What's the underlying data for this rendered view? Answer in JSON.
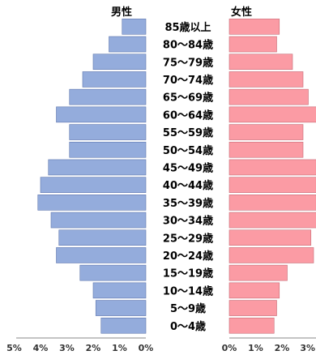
{
  "chart_data": {
    "type": "bar",
    "orientation": "horizontal",
    "layout": "population-pyramid",
    "categories": [
      "85歳以上",
      "80～84歳",
      "75～79歳",
      "70～74歳",
      "65～69歳",
      "60～64歳",
      "55～59歳",
      "50～54歳",
      "45～49歳",
      "40～44歳",
      "35～39歳",
      "30～34歳",
      "25～29歳",
      "20～24歳",
      "15～19歳",
      "10～14歳",
      "5～9歳",
      "0～4歳"
    ],
    "series": [
      {
        "name": "男性",
        "color": "#94acdc",
        "values": [
          0.9,
          1.4,
          2.0,
          2.4,
          2.9,
          3.4,
          2.9,
          2.9,
          3.7,
          4.0,
          4.1,
          3.6,
          3.3,
          3.4,
          2.5,
          2.0,
          1.9,
          1.7
        ]
      },
      {
        "name": "女性",
        "color": "#fb9ba4",
        "values": [
          1.9,
          1.8,
          2.4,
          2.8,
          3.0,
          3.4,
          2.8,
          2.8,
          3.3,
          3.3,
          3.3,
          3.4,
          3.1,
          3.2,
          2.2,
          1.9,
          1.8,
          1.7
        ]
      }
    ],
    "male_axis": {
      "range": [
        0,
        5
      ],
      "ticks": [
        "5%",
        "4%",
        "3%",
        "2%",
        "1%",
        "0%"
      ]
    },
    "female_axis": {
      "range": [
        0,
        3
      ],
      "ticks": [
        "0%",
        "1%",
        "2%",
        "3%"
      ]
    },
    "grid": false,
    "legend": "top"
  }
}
